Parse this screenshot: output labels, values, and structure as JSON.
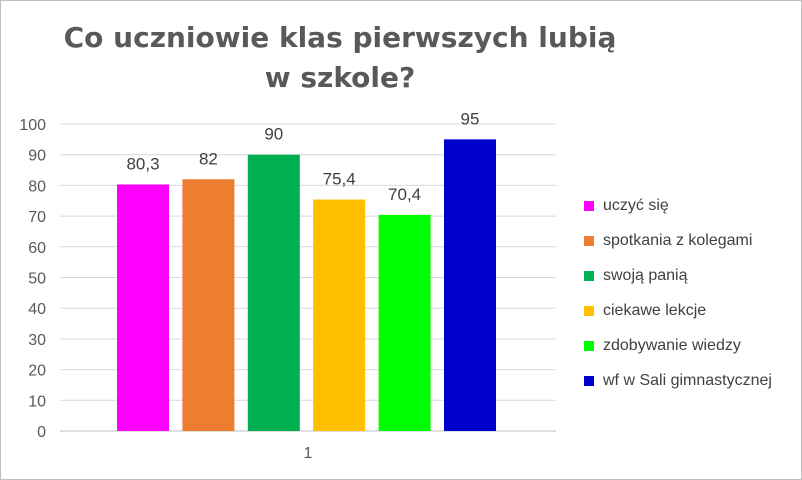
{
  "chart_data": {
    "type": "bar",
    "title_lines": [
      "Co uczniowie klas pierwszych lubią",
      "w szkole?"
    ],
    "categories": [
      "1"
    ],
    "y_ticks": [
      "0",
      "10",
      "20",
      "30",
      "40",
      "50",
      "60",
      "70",
      "80",
      "90",
      "100"
    ],
    "ylim": [
      0,
      100
    ],
    "grid": true,
    "legend_position": "right",
    "series": [
      {
        "name": "uczyć się",
        "value": 80.3,
        "label": "80,3",
        "color": "#ff00ff"
      },
      {
        "name": "spotkania z kolegami",
        "value": 82,
        "label": "82",
        "color": "#ed7d31"
      },
      {
        "name": "swoją panią",
        "value": 90,
        "label": "90",
        "color": "#00b050"
      },
      {
        "name": "ciekawe lekcje",
        "value": 75.4,
        "label": "75,4",
        "color": "#ffc000"
      },
      {
        "name": "zdobywanie wiedzy",
        "value": 70.4,
        "label": "70,4",
        "color": "#00ff00"
      },
      {
        "name": "wf w Sali gimnastycznej",
        "value": 95,
        "label": "95",
        "color": "#0000cc"
      }
    ]
  }
}
